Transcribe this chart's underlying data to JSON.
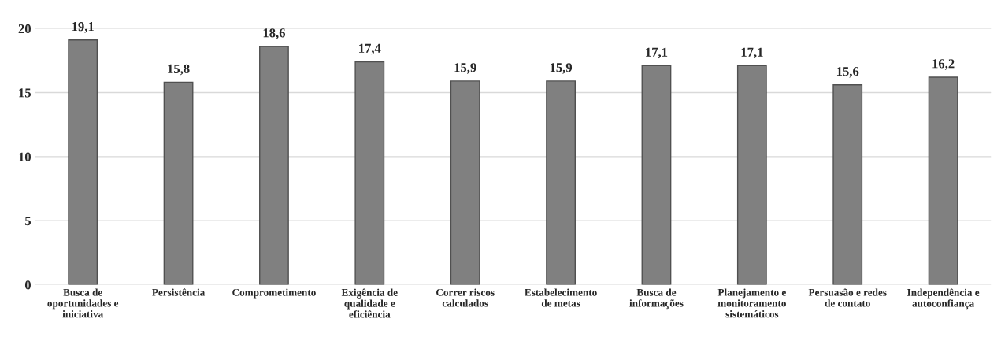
{
  "chart_data": {
    "type": "bar",
    "categories": [
      "Busca de\noportunidades e\niniciativa",
      "Persistência",
      "Comprometimento",
      "Exigência de\nqualidade e\neficiência",
      "Correr riscos\ncalculados",
      "Estabelecimento\nde metas",
      "Busca de\ninformações",
      "Planejamento e\nmonitoramento\nsistemáticos",
      "Persuasão e redes\nde contato",
      "Independência e\nautoconfiança"
    ],
    "values": [
      19.1,
      15.8,
      18.6,
      17.4,
      15.9,
      15.9,
      17.1,
      17.1,
      15.6,
      16.2
    ],
    "value_labels": [
      "19,1",
      "15,8",
      "18,6",
      "17,4",
      "15,9",
      "15,9",
      "17,1",
      "17,1",
      "15,6",
      "16,2"
    ],
    "color": "#808080",
    "ylim": [
      0,
      20
    ],
    "yticks": [
      0,
      5,
      10,
      15,
      20
    ],
    "grid": "y"
  }
}
